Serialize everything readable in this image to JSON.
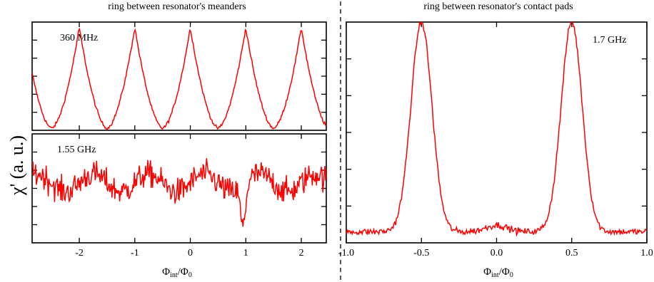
{
  "ylabel": "χ' (a. u.)",
  "line_color": "#ff0000",
  "chart_data": [
    {
      "type": "line",
      "title": "ring between resonator's meanders",
      "annotation": "360 MHz",
      "xlim": [
        -2.85,
        2.45
      ],
      "ylim": [
        0,
        1
      ],
      "x_ticks": [
        -2,
        -1,
        0,
        1,
        2
      ],
      "tick_labels": [],
      "waveform": "periodic-peaks",
      "peak_positions": [
        -2.5,
        -1.5,
        -0.5,
        0.5,
        1.5
      ],
      "baseline": 0.02,
      "peak_height": 0.95,
      "noise": 0.015
    },
    {
      "type": "line",
      "title": "",
      "annotation": "1.55 GHz",
      "xlim": [
        -2.85,
        2.45
      ],
      "ylim": [
        0,
        1
      ],
      "x_ticks": [
        -2,
        -1,
        0,
        1,
        2
      ],
      "tick_labels": [
        "-2",
        "-1",
        "0",
        "1",
        "2"
      ],
      "xlabel_main": "Φ",
      "xlabel_sub1": "int",
      "xlabel_mid": "/Φ",
      "xlabel_sub2": "0",
      "waveform": "noisy",
      "baseline": 0.55,
      "noise": 0.12,
      "dip_position": 0.95
    },
    {
      "type": "line",
      "title": "ring between resonator's contact pads",
      "annotation": "1.7 GHz",
      "xlim": [
        -1.0,
        1.0
      ],
      "ylim": [
        0,
        1
      ],
      "x_ticks": [
        -1.0,
        -0.5,
        0.0,
        0.5,
        1.0
      ],
      "tick_labels": [
        "-1.0",
        "-0.5",
        "0.0",
        "0.5",
        "1.0"
      ],
      "xlabel_main": "Φ",
      "xlabel_sub1": "int",
      "xlabel_mid": "/Φ",
      "xlabel_sub2": "0",
      "waveform": "two-peaks",
      "peak_positions": [
        -0.5,
        0.5
      ],
      "peak_width": 0.07,
      "baseline": 0.05,
      "peak_height": 1.0,
      "noise": 0.015
    }
  ]
}
